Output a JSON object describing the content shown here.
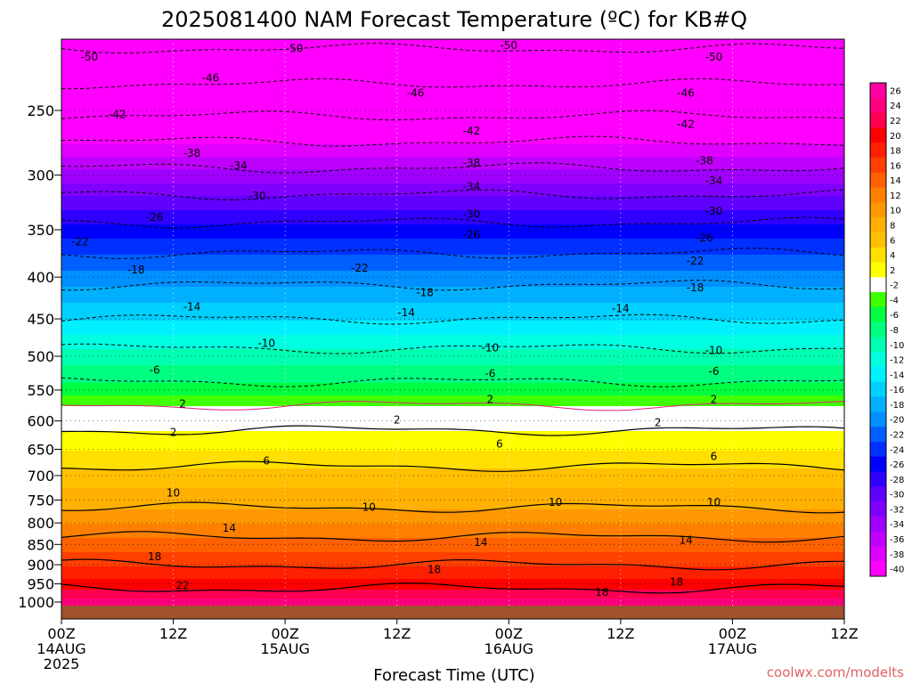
{
  "chart_data": {
    "type": "heatmap",
    "title": "2025081400 NAM Forecast Temperature (ºC) for KB#Q",
    "xlabel": "Forecast Time (UTC)",
    "ylabel": "",
    "credit": "coolwx.com/modelts",
    "x_ticks": [
      {
        "line1": "00Z",
        "line2": "14AUG",
        "line3": "2025",
        "hour": 0
      },
      {
        "line1": "12Z",
        "line2": "",
        "line3": "",
        "hour": 12
      },
      {
        "line1": "00Z",
        "line2": "15AUG",
        "line3": "",
        "hour": 24
      },
      {
        "line1": "12Z",
        "line2": "",
        "line3": "",
        "hour": 36
      },
      {
        "line1": "00Z",
        "line2": "16AUG",
        "line3": "",
        "hour": 48
      },
      {
        "line1": "12Z",
        "line2": "",
        "line3": "",
        "hour": 60
      },
      {
        "line1": "00Z",
        "line2": "17AUG",
        "line3": "",
        "hour": 72
      },
      {
        "line1": "12Z",
        "line2": "",
        "line3": "",
        "hour": 84
      }
    ],
    "x_range_hours": [
      0,
      84
    ],
    "y_axis": {
      "scale": "log-pressure",
      "ticks": [
        1000,
        950,
        900,
        850,
        800,
        750,
        700,
        650,
        600,
        550,
        500,
        450,
        400,
        350,
        300,
        250
      ],
      "range_hPa": [
        1013,
        200
      ]
    },
    "colorbar": {
      "levels": [
        -40,
        -38,
        -36,
        -34,
        -32,
        -30,
        -28,
        -26,
        -24,
        -22,
        -20,
        -18,
        -16,
        -14,
        -12,
        -10,
        -8,
        -6,
        -4,
        -2,
        2,
        4,
        6,
        8,
        10,
        12,
        14,
        16,
        18,
        20,
        22,
        24,
        26
      ],
      "labels": [
        "-40",
        "-38",
        "-36",
        "-34",
        "-32",
        "-30",
        "-28",
        "-26",
        "-24",
        "-22",
        "-20",
        "-18",
        "-16",
        "-14",
        "-12",
        "-10",
        "-8",
        "-6",
        "-4",
        "-2",
        "2",
        "4",
        "6",
        "8",
        "10",
        "12",
        "14",
        "16",
        "18",
        "20",
        "22",
        "24",
        "26"
      ]
    },
    "temperature_profile": {
      "pressure_hPa": [
        1000,
        950,
        900,
        850,
        800,
        750,
        700,
        650,
        600,
        550,
        500,
        450,
        400,
        350,
        300,
        250,
        200
      ],
      "temp_C": [
        25,
        21,
        18,
        15,
        12,
        9,
        7,
        4,
        1,
        -5,
        -9,
        -14,
        -19,
        -25,
        -33,
        -43,
        -52
      ]
    },
    "contour_labels": [
      {
        "text": "-50",
        "hour": 3,
        "p": 215
      },
      {
        "text": "-50",
        "hour": 25,
        "p": 210
      },
      {
        "text": "-50",
        "hour": 48,
        "p": 208
      },
      {
        "text": "-50",
        "hour": 70,
        "p": 215
      },
      {
        "text": "-46",
        "hour": 16,
        "p": 228
      },
      {
        "text": "-46",
        "hour": 38,
        "p": 238
      },
      {
        "text": "-46",
        "hour": 67,
        "p": 238
      },
      {
        "text": "-42",
        "hour": 6,
        "p": 253
      },
      {
        "text": "-42",
        "hour": 44,
        "p": 265
      },
      {
        "text": "-42",
        "hour": 67,
        "p": 260
      },
      {
        "text": "-38",
        "hour": 14,
        "p": 282
      },
      {
        "text": "-38",
        "hour": 44,
        "p": 290
      },
      {
        "text": "-38",
        "hour": 69,
        "p": 288
      },
      {
        "text": "-34",
        "hour": 19,
        "p": 292
      },
      {
        "text": "-34",
        "hour": 44,
        "p": 310
      },
      {
        "text": "-34",
        "hour": 70,
        "p": 305
      },
      {
        "text": "-30",
        "hour": 21,
        "p": 318
      },
      {
        "text": "-30",
        "hour": 44,
        "p": 335
      },
      {
        "text": "-30",
        "hour": 70,
        "p": 332
      },
      {
        "text": "-26",
        "hour": 10,
        "p": 338
      },
      {
        "text": "-26",
        "hour": 44,
        "p": 355
      },
      {
        "text": "-26",
        "hour": 69,
        "p": 358
      },
      {
        "text": "-22",
        "hour": 2,
        "p": 362
      },
      {
        "text": "-22",
        "hour": 32,
        "p": 390
      },
      {
        "text": "-22",
        "hour": 68,
        "p": 382
      },
      {
        "text": "-18",
        "hour": 8,
        "p": 392
      },
      {
        "text": "-18",
        "hour": 39,
        "p": 418
      },
      {
        "text": "-18",
        "hour": 68,
        "p": 412
      },
      {
        "text": "-14",
        "hour": 14,
        "p": 435
      },
      {
        "text": "-14",
        "hour": 37,
        "p": 442
      },
      {
        "text": "-14",
        "hour": 60,
        "p": 437
      },
      {
        "text": "-10",
        "hour": 22,
        "p": 482
      },
      {
        "text": "-10",
        "hour": 46,
        "p": 488
      },
      {
        "text": "-10",
        "hour": 70,
        "p": 492
      },
      {
        "text": "-6",
        "hour": 10,
        "p": 520
      },
      {
        "text": "-6",
        "hour": 46,
        "p": 525
      },
      {
        "text": "-6",
        "hour": 70,
        "p": 522
      },
      {
        "text": "2",
        "hour": 13,
        "p": 572
      },
      {
        "text": "2",
        "hour": 46,
        "p": 565
      },
      {
        "text": "2",
        "hour": 70,
        "p": 565
      },
      {
        "text": "2",
        "hour": 12,
        "p": 620
      },
      {
        "text": "2",
        "hour": 36,
        "p": 598
      },
      {
        "text": "2",
        "hour": 64,
        "p": 603
      },
      {
        "text": "6",
        "hour": 22,
        "p": 672
      },
      {
        "text": "6",
        "hour": 47,
        "p": 640
      },
      {
        "text": "6",
        "hour": 70,
        "p": 663
      },
      {
        "text": "10",
        "hour": 12,
        "p": 735
      },
      {
        "text": "10",
        "hour": 33,
        "p": 765
      },
      {
        "text": "10",
        "hour": 53,
        "p": 755
      },
      {
        "text": "10",
        "hour": 70,
        "p": 755
      },
      {
        "text": "14",
        "hour": 18,
        "p": 812
      },
      {
        "text": "14",
        "hour": 45,
        "p": 845
      },
      {
        "text": "14",
        "hour": 67,
        "p": 840
      },
      {
        "text": "18",
        "hour": 10,
        "p": 880
      },
      {
        "text": "18",
        "hour": 40,
        "p": 912
      },
      {
        "text": "18",
        "hour": 58,
        "p": 973
      },
      {
        "text": "18",
        "hour": 66,
        "p": 945
      },
      {
        "text": "22",
        "hour": 13,
        "p": 955
      }
    ]
  }
}
